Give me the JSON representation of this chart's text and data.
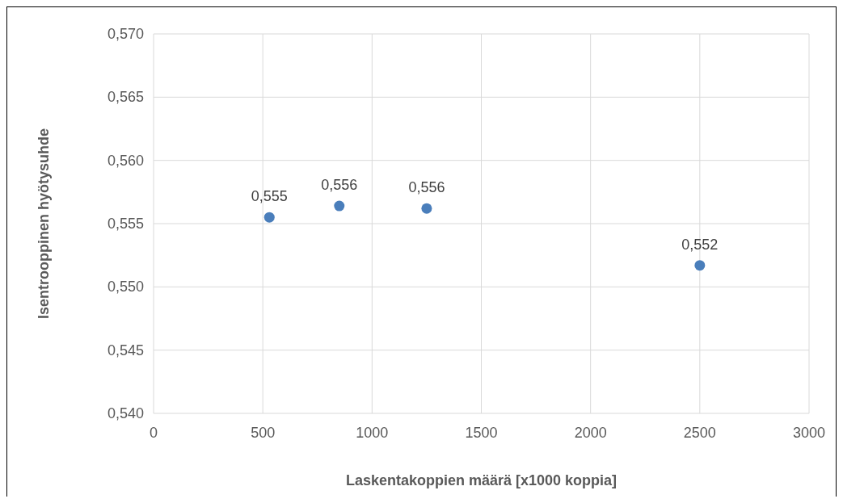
{
  "chart_data": {
    "type": "scatter",
    "xlabel": "Laskentakoppien määrä [x1000 koppia]",
    "ylabel": "Isentrooppinen hyötysuhde",
    "x": [
      530,
      850,
      1250,
      2500
    ],
    "series": [
      {
        "color": "#4a7ebb",
        "values": [
          0.5555,
          0.5564,
          0.5562,
          0.5517
        ],
        "value_labels": [
          "0,555",
          "0,556",
          "0,556",
          "0,552"
        ]
      }
    ],
    "xlim": [
      0,
      3000
    ],
    "xticks": [
      0,
      500,
      1000,
      1500,
      2000,
      2500,
      3000
    ],
    "ylim": [
      0.54,
      0.57
    ],
    "yticks": [
      {
        "value": 0.54,
        "label": "0,540"
      },
      {
        "value": 0.545,
        "label": "0,545"
      },
      {
        "value": 0.55,
        "label": "0,550"
      },
      {
        "value": 0.555,
        "label": "0,555"
      },
      {
        "value": 0.56,
        "label": "0,560"
      },
      {
        "value": 0.565,
        "label": "0,565"
      },
      {
        "value": 0.57,
        "label": "0,570"
      }
    ],
    "grid": true,
    "marker": "circle"
  }
}
